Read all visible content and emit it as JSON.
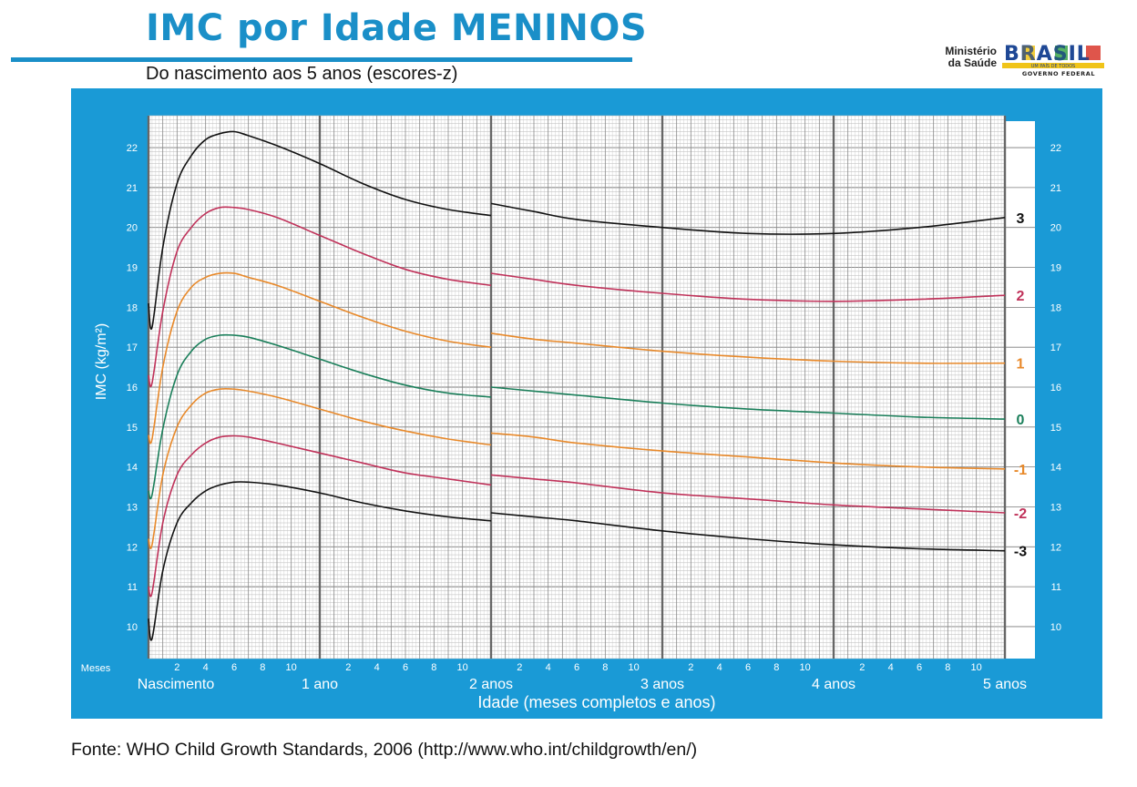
{
  "header": {
    "title": "IMC por Idade MENINOS",
    "subtitle": "Do nascimento aos 5 anos (escores-z)",
    "ministry_line1": "Ministério",
    "ministry_line2": "da Saúde",
    "logo_text": "BRASIL",
    "logo_motto": "UM PAÍS DE TODOS",
    "logo_gov": "GOVERNO FEDERAL"
  },
  "footer": {
    "source": "Fonte: WHO Child Growth Standards, 2006 (http://www.who.int/childgrowth/en/)"
  },
  "colors": {
    "frame": "#1a9ad6",
    "black": "#111111",
    "red": "#c0325a",
    "orange": "#e8892a",
    "green": "#1a7f5a"
  },
  "chart_data": {
    "type": "line",
    "title": "IMC por Idade MENINOS",
    "subtitle": "Do nascimento aos 5 anos (escores-z)",
    "xlabel": "Idade (meses completos e anos)",
    "ylabel": "IMC (kg/m²)",
    "x_unit_label": "Meses",
    "xlim": [
      0,
      60
    ],
    "ylim": [
      9.2,
      22.8
    ],
    "y_ticks": [
      10,
      11,
      12,
      13,
      14,
      15,
      16,
      17,
      18,
      19,
      20,
      21,
      22
    ],
    "month_ticks": [
      "2",
      "4",
      "6",
      "8",
      "10"
    ],
    "year_ticks": [
      {
        "month": 0,
        "label": "Nascimento"
      },
      {
        "month": 12,
        "label": "1 ano"
      },
      {
        "month": 24,
        "label": "2 anos"
      },
      {
        "month": 36,
        "label": "3 anos"
      },
      {
        "month": 48,
        "label": "4 anos"
      },
      {
        "month": 60,
        "label": "5 anos"
      }
    ],
    "grid": true,
    "legend_position": "right",
    "series": [
      {
        "name": "3",
        "color": "#111111",
        "x": [
          0,
          0.25,
          1,
          2,
          3,
          4,
          5,
          6,
          7,
          9,
          12,
          15,
          18,
          21,
          24
        ],
        "y": [
          18.1,
          17.5,
          19.5,
          21.1,
          21.8,
          22.2,
          22.35,
          22.4,
          22.3,
          22.05,
          21.6,
          21.1,
          20.7,
          20.45,
          20.3
        ],
        "x2": [
          24,
          27,
          30,
          36,
          42,
          48,
          54,
          60
        ],
        "y2": [
          20.6,
          20.4,
          20.2,
          20.0,
          19.85,
          19.85,
          20.0,
          20.25
        ]
      },
      {
        "name": "2",
        "color": "#c0325a",
        "x": [
          0,
          0.25,
          1,
          2,
          3,
          4,
          5,
          6,
          7,
          9,
          12,
          15,
          18,
          21,
          24
        ],
        "y": [
          16.3,
          16.1,
          17.9,
          19.4,
          20.0,
          20.35,
          20.5,
          20.5,
          20.45,
          20.25,
          19.8,
          19.35,
          18.95,
          18.7,
          18.55
        ],
        "x2": [
          24,
          27,
          30,
          36,
          42,
          48,
          54,
          60
        ],
        "y2": [
          18.85,
          18.7,
          18.55,
          18.35,
          18.2,
          18.15,
          18.2,
          18.3
        ]
      },
      {
        "name": "1",
        "color": "#e8892a",
        "x": [
          0,
          0.25,
          1,
          2,
          3,
          4,
          5,
          6,
          7,
          9,
          12,
          15,
          18,
          21,
          24
        ],
        "y": [
          14.8,
          14.7,
          16.5,
          17.9,
          18.5,
          18.75,
          18.85,
          18.85,
          18.75,
          18.55,
          18.15,
          17.75,
          17.4,
          17.15,
          17.0
        ],
        "x2": [
          24,
          27,
          30,
          36,
          42,
          48,
          54,
          60
        ],
        "y2": [
          17.35,
          17.2,
          17.1,
          16.9,
          16.75,
          16.65,
          16.6,
          16.6
        ]
      },
      {
        "name": "0",
        "color": "#1a7f5a",
        "x": [
          0,
          0.25,
          1,
          2,
          3,
          4,
          5,
          6,
          7,
          9,
          12,
          15,
          18,
          21,
          24
        ],
        "y": [
          13.4,
          13.3,
          14.95,
          16.3,
          16.9,
          17.2,
          17.3,
          17.3,
          17.25,
          17.05,
          16.7,
          16.35,
          16.05,
          15.85,
          15.75
        ],
        "x2": [
          24,
          27,
          30,
          36,
          42,
          48,
          54,
          60
        ],
        "y2": [
          16.0,
          15.9,
          15.8,
          15.6,
          15.45,
          15.35,
          15.25,
          15.2
        ]
      },
      {
        "name": "-1",
        "color": "#e8892a",
        "x": [
          0,
          0.25,
          1,
          2,
          3,
          4,
          5,
          6,
          7,
          9,
          12,
          15,
          18,
          21,
          24
        ],
        "y": [
          12.2,
          12.05,
          13.8,
          15.0,
          15.55,
          15.85,
          15.95,
          15.95,
          15.9,
          15.75,
          15.45,
          15.15,
          14.9,
          14.7,
          14.55
        ],
        "x2": [
          24,
          27,
          30,
          36,
          42,
          48,
          54,
          60
        ],
        "y2": [
          14.85,
          14.75,
          14.6,
          14.4,
          14.25,
          14.1,
          14.0,
          13.95
        ]
      },
      {
        "name": "-2",
        "color": "#c0325a",
        "x": [
          0,
          0.25,
          1,
          2,
          3,
          4,
          5,
          6,
          7,
          9,
          12,
          15,
          18,
          21,
          24
        ],
        "y": [
          11.0,
          10.85,
          12.6,
          13.8,
          14.3,
          14.6,
          14.75,
          14.78,
          14.75,
          14.6,
          14.35,
          14.1,
          13.85,
          13.7,
          13.55
        ],
        "x2": [
          24,
          27,
          30,
          36,
          42,
          48,
          54,
          60
        ],
        "y2": [
          13.8,
          13.7,
          13.6,
          13.35,
          13.2,
          13.05,
          12.95,
          12.85
        ]
      },
      {
        "name": "-3",
        "color": "#111111",
        "x": [
          0,
          0.25,
          1,
          2,
          3,
          4,
          5,
          6,
          7,
          9,
          12,
          15,
          18,
          21,
          24
        ],
        "y": [
          10.2,
          9.7,
          11.4,
          12.6,
          13.1,
          13.4,
          13.55,
          13.62,
          13.62,
          13.55,
          13.35,
          13.1,
          12.9,
          12.75,
          12.65
        ],
        "x2": [
          24,
          27,
          30,
          36,
          42,
          48,
          54,
          60
        ],
        "y2": [
          12.85,
          12.75,
          12.65,
          12.4,
          12.2,
          12.05,
          11.95,
          11.9
        ]
      }
    ]
  }
}
